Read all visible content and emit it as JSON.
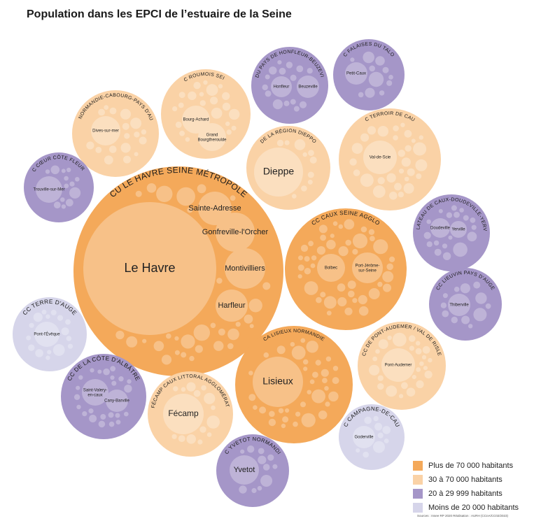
{
  "title": "Population dans les EPCI de l’estuaire de la Seine",
  "source": "Sources : Insee RP 2020 Réalisation : AURH (CCnA/CC02/2023)",
  "colors": {
    "gt70k": "#F4A95A",
    "k30_70": "#FAD2A6",
    "k20_30": "#A596C8",
    "lt20k": "#D6D5EA"
  },
  "legend": [
    {
      "label": "Plus de 70 000 habitants",
      "cls": "gt70k"
    },
    {
      "label": "30 à 70 000 habitants",
      "cls": "k30_70"
    },
    {
      "label": "20 à 29 999 habitants",
      "cls": "k20_30"
    },
    {
      "label": "Moins de 20 000 habitants",
      "cls": "lt20k"
    }
  ],
  "epci": [
    {
      "id": "cu-le-havre",
      "name": "CU LE HAVRE SEINE MÉTROPOLE",
      "cls": "gt70k",
      "communes": [
        "Le Havre",
        "Sainte-Adresse",
        "Gonfreville-l'Orcher",
        "Montivilliers",
        "Harfleur"
      ]
    },
    {
      "id": "cc-caux-seine",
      "name": "CC CAUX SEINE AGGLO",
      "cls": "gt70k",
      "communes": [
        "Bolbec",
        "Port-Jérôme-sur-Seine"
      ]
    },
    {
      "id": "ca-lisieux",
      "name": "CA LISIEUX NORMANDIE",
      "cls": "gt70k",
      "communes": [
        "Lisieux"
      ]
    },
    {
      "id": "ca-dieppe",
      "name": "CA DE LA RÉGION DIEPPOISE",
      "cls": "k30_70",
      "communes": [
        "Dieppe"
      ]
    },
    {
      "id": "cc-roumois",
      "name": "CC ROUMOIS SEINE",
      "cls": "k30_70",
      "communes": [
        "Bourg-Achard",
        "Grand Bourgtheroulde"
      ]
    },
    {
      "id": "cc-normandie-cabourg",
      "name": "CC NORMANDIE-CABOURG-PAYS D'AUGE",
      "cls": "k30_70",
      "communes": [
        "Dives-sur-mer"
      ]
    },
    {
      "id": "cc-terroir",
      "name": "CC TERROIR DE CAUX",
      "cls": "k30_70",
      "communes": [
        "Val-de-Scie"
      ]
    },
    {
      "id": "cc-pont-audemer",
      "name": "CC DE PONT-AUDEMER / VAL DE RISLE",
      "cls": "k30_70",
      "communes": [
        "Pont-Audemer"
      ]
    },
    {
      "id": "ca-fecamp",
      "name": "CA FÉCAMP CAUX LITTORAL AGGLOMÉRATION",
      "cls": "k30_70",
      "communes": [
        "Fécamp"
      ]
    },
    {
      "id": "cc-honfleur",
      "name": "CC DU PAYS DE HONFLEUR-BEUZEVILLE",
      "cls": "k20_30",
      "communes": [
        "Honfleur",
        "Beuzeville"
      ]
    },
    {
      "id": "cc-falaises",
      "name": "CC FALAISES DU TALOU",
      "cls": "k20_30",
      "communes": [
        "Petit-Caux"
      ]
    },
    {
      "id": "cc-coeur-cote",
      "name": "CC CŒUR CÔTE FLEURIE",
      "cls": "k20_30",
      "communes": [
        "Trouville-sur-Mer"
      ]
    },
    {
      "id": "cc-doudeville",
      "name": "CC PLATEAU DE CAUX-DOUDEVILLE-YERVILLE",
      "cls": "k20_30",
      "communes": [
        "Doudeville",
        "Yerville"
      ]
    },
    {
      "id": "cc-lieuvin",
      "name": "CC LIEUVIN PAYS D'AUGE",
      "cls": "k20_30",
      "communes": [
        "Thiberville"
      ]
    },
    {
      "id": "cc-albatre",
      "name": "CC DE LA CÔTE D'ALBÂTRE",
      "cls": "k20_30",
      "communes": [
        "Saint-Valery-en-caux",
        "Cany-Barville"
      ]
    },
    {
      "id": "cc-yvetot",
      "name": "CC YVETOT NORMANDIE",
      "cls": "k20_30",
      "communes": [
        "Yvetot"
      ]
    },
    {
      "id": "cc-terre-auge",
      "name": "CC TERRE D'AUGE",
      "cls": "lt20k",
      "communes": [
        "Pont-l'Évêque"
      ]
    },
    {
      "id": "cc-campagne",
      "name": "CC CAMPAGNE-DE-CAUX",
      "cls": "lt20k",
      "communes": [
        "Goderville"
      ]
    }
  ]
}
